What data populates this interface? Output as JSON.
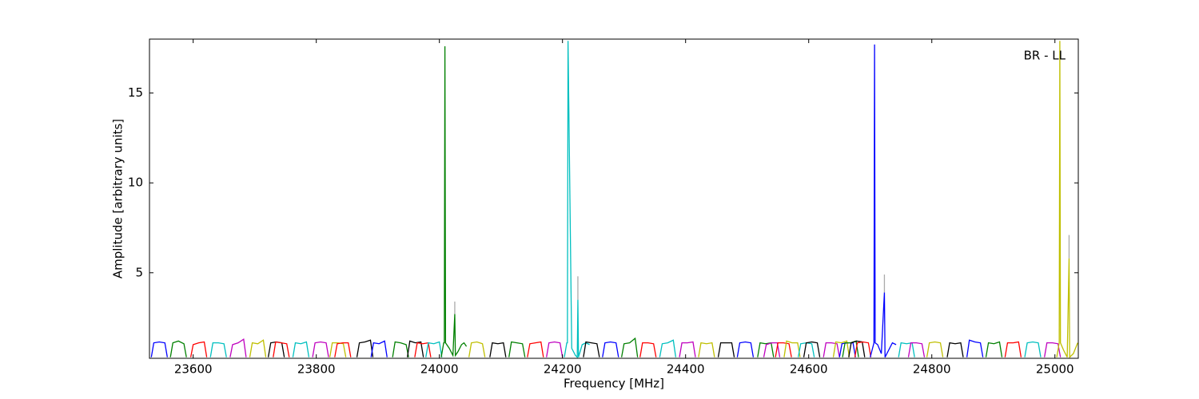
{
  "chart_data": {
    "type": "line",
    "xlabel": "Frequency [MHz]",
    "ylabel": "Amplitude [arbitrary units]",
    "annotation": "BR - LL",
    "xlim": [
      23529,
      25038
    ],
    "ylim": [
      0.24,
      18.0
    ],
    "xticks": [
      23600,
      23800,
      24000,
      24200,
      24400,
      24600,
      24800,
      25000
    ],
    "yticks": [
      5,
      10,
      15
    ],
    "series": [
      {
        "color": "#aaaaaa",
        "x": [
          24025,
          24025,
          24025,
          24225,
          24225,
          24225,
          24723,
          24723,
          24723,
          25023,
          25023,
          25023
        ],
        "values": [
          2.7,
          3.4,
          null,
          3.5,
          4.8,
          null,
          3.9,
          4.9,
          null,
          5.8,
          7.1,
          null
        ]
      },
      {
        "color": "#0000ff",
        "x": [
          23532,
          23536,
          23545,
          23554,
          23558
        ],
        "values": [
          0.3,
          1.1,
          1.15,
          1.1,
          0.3
        ]
      },
      {
        "color": "#008000",
        "x": [
          23563,
          23567,
          23576,
          23585,
          23589
        ],
        "values": [
          0.3,
          1.1,
          1.2,
          1.05,
          0.3
        ]
      },
      {
        "color": "#ff0000",
        "x": [
          23596,
          23600,
          23609,
          23618,
          23622
        ],
        "values": [
          0.3,
          1.0,
          1.1,
          1.15,
          0.3
        ]
      },
      {
        "color": "#00bfbf",
        "x": [
          23628,
          23632,
          23641,
          23650,
          23654
        ],
        "values": [
          0.3,
          1.1,
          1.1,
          1.05,
          0.3
        ]
      },
      {
        "color": "#bf00bf",
        "x": [
          23660,
          23664,
          23673,
          23682,
          23686
        ],
        "values": [
          0.3,
          1.0,
          1.1,
          1.3,
          0.3
        ]
      },
      {
        "color": "#bfbf00",
        "x": [
          23692,
          23696,
          23705,
          23714,
          23718
        ],
        "values": [
          0.3,
          1.1,
          1.05,
          1.25,
          0.3
        ]
      },
      {
        "color": "#000000",
        "x": [
          23722,
          23726,
          23735,
          23744,
          23748
        ],
        "values": [
          0.3,
          1.1,
          1.15,
          1.1,
          0.3
        ]
      },
      {
        "color": "#ff0000",
        "x": [
          23730,
          23734,
          23743,
          23752,
          23756
        ],
        "values": [
          0.3,
          1.15,
          1.1,
          1.05,
          0.3
        ]
      },
      {
        "color": "#00bfbf",
        "x": [
          23762,
          23766,
          23775,
          23784,
          23788
        ],
        "values": [
          0.3,
          1.1,
          1.05,
          1.15,
          0.3
        ]
      },
      {
        "color": "#bf00bf",
        "x": [
          23794,
          23798,
          23807,
          23816,
          23820
        ],
        "values": [
          0.3,
          1.1,
          1.15,
          1.1,
          0.3
        ]
      },
      {
        "color": "#bfbf00",
        "x": [
          23822,
          23826,
          23835,
          23844,
          23848
        ],
        "values": [
          0.3,
          1.1,
          1.1,
          1.05,
          0.3
        ]
      },
      {
        "color": "#ff0000",
        "x": [
          23830,
          23834,
          23843,
          23852,
          23856
        ],
        "values": [
          0.3,
          1.05,
          1.1,
          1.1,
          0.3
        ]
      },
      {
        "color": "#000000",
        "x": [
          23866,
          23870,
          23879,
          23888,
          23892
        ],
        "values": [
          0.3,
          1.1,
          1.15,
          1.25,
          0.3
        ]
      },
      {
        "color": "#0000ff",
        "x": [
          23889,
          23893,
          23902,
          23911,
          23915
        ],
        "values": [
          0.3,
          1.1,
          1.05,
          1.2,
          0.3
        ]
      },
      {
        "color": "#008000",
        "x": [
          23924,
          23928,
          23937,
          23946,
          23950
        ],
        "values": [
          0.3,
          1.15,
          1.1,
          1.0,
          0.3
        ]
      },
      {
        "color": "#000000",
        "x": [
          23948,
          23952,
          23961,
          23970,
          23974
        ],
        "values": [
          0.3,
          1.2,
          1.1,
          1.15,
          0.3
        ]
      },
      {
        "color": "#ff0000",
        "x": [
          23960,
          23964,
          23973,
          23982,
          23986
        ],
        "values": [
          0.3,
          1.1,
          1.05,
          1.1,
          0.3
        ]
      },
      {
        "color": "#00bfbf",
        "x": [
          23978,
          23982,
          23991,
          24000,
          24004
        ],
        "values": [
          0.3,
          1.1,
          1.05,
          1.15,
          0.3
        ]
      },
      {
        "color": "#008000",
        "x": [
          24003,
          24007,
          24008,
          24009,
          24010,
          24016,
          24022,
          24025,
          24026,
          24030,
          24036,
          24040,
          24044
        ],
        "values": [
          0.3,
          1.1,
          1.1,
          17.6,
          1.1,
          0.8,
          0.4,
          2.7,
          0.4,
          0.6,
          1.0,
          1.1,
          0.9
        ]
      },
      {
        "color": "#bfbf00",
        "x": [
          24048,
          24052,
          24061,
          24070,
          24074
        ],
        "values": [
          0.3,
          1.1,
          1.15,
          1.05,
          0.3
        ]
      },
      {
        "color": "#000000",
        "x": [
          24082,
          24086,
          24095,
          24104,
          24108
        ],
        "values": [
          0.3,
          1.1,
          1.05,
          1.1,
          0.3
        ]
      },
      {
        "color": "#008000",
        "x": [
          24113,
          24117,
          24126,
          24135,
          24139
        ],
        "values": [
          0.3,
          1.15,
          1.1,
          1.05,
          0.3
        ]
      },
      {
        "color": "#ff0000",
        "x": [
          24143,
          24147,
          24156,
          24165,
          24169
        ],
        "values": [
          0.3,
          1.05,
          1.1,
          1.15,
          0.3
        ]
      },
      {
        "color": "#bf00bf",
        "x": [
          24174,
          24178,
          24187,
          24196,
          24200
        ],
        "values": [
          0.3,
          1.1,
          1.15,
          1.1,
          0.3
        ]
      },
      {
        "color": "#00bfbf",
        "x": [
          24203,
          24207,
          24208,
          24209,
          24215,
          24221,
          24224,
          24225,
          24226,
          24232,
          24238,
          24244
        ],
        "values": [
          0.3,
          1.1,
          1.1,
          17.9,
          0.8,
          0.4,
          0.3,
          3.5,
          0.3,
          1.0,
          1.1,
          1.0
        ]
      },
      {
        "color": "#000000",
        "x": [
          24234,
          24238,
          24247,
          24256,
          24260
        ],
        "values": [
          0.3,
          1.15,
          1.1,
          1.05,
          0.3
        ]
      },
      {
        "color": "#0000ff",
        "x": [
          24265,
          24269,
          24278,
          24287,
          24291
        ],
        "values": [
          0.3,
          1.1,
          1.15,
          1.1,
          0.3
        ]
      },
      {
        "color": "#008000",
        "x": [
          24296,
          24300,
          24309,
          24318,
          24322
        ],
        "values": [
          0.3,
          1.05,
          1.1,
          1.35,
          0.3
        ]
      },
      {
        "color": "#ff0000",
        "x": [
          24326,
          24330,
          24339,
          24348,
          24352
        ],
        "values": [
          0.3,
          1.1,
          1.1,
          1.05,
          0.3
        ]
      },
      {
        "color": "#00bfbf",
        "x": [
          24358,
          24362,
          24371,
          24380,
          24384
        ],
        "values": [
          0.3,
          1.05,
          1.1,
          1.25,
          0.3
        ]
      },
      {
        "color": "#bf00bf",
        "x": [
          24390,
          24394,
          24403,
          24412,
          24416
        ],
        "values": [
          0.3,
          1.1,
          1.1,
          1.15,
          0.3
        ]
      },
      {
        "color": "#bfbf00",
        "x": [
          24421,
          24425,
          24434,
          24443,
          24447
        ],
        "values": [
          0.3,
          1.1,
          1.05,
          1.1,
          0.3
        ]
      },
      {
        "color": "#000000",
        "x": [
          24453,
          24457,
          24466,
          24475,
          24479
        ],
        "values": [
          0.3,
          1.1,
          1.1,
          1.1,
          0.3
        ]
      },
      {
        "color": "#0000ff",
        "x": [
          24484,
          24488,
          24497,
          24506,
          24510
        ],
        "values": [
          0.3,
          1.1,
          1.15,
          1.1,
          0.3
        ]
      },
      {
        "color": "#008000",
        "x": [
          24517,
          24521,
          24530,
          24539,
          24543
        ],
        "values": [
          0.3,
          1.1,
          1.05,
          1.1,
          0.3
        ]
      },
      {
        "color": "#bf00bf",
        "x": [
          24527,
          24531,
          24540,
          24549,
          24553
        ],
        "values": [
          0.3,
          1.0,
          1.1,
          1.1,
          0.3
        ]
      },
      {
        "color": "#ff0000",
        "x": [
          24546,
          24550,
          24559,
          24568,
          24572
        ],
        "values": [
          0.3,
          1.1,
          1.1,
          1.05,
          0.3
        ]
      },
      {
        "color": "#bfbf00",
        "x": [
          24560,
          24564,
          24573,
          24582,
          24586
        ],
        "values": [
          0.3,
          1.2,
          1.1,
          1.1,
          0.3
        ]
      },
      {
        "color": "#00bfbf",
        "x": [
          24583,
          24587,
          24596,
          24605,
          24609
        ],
        "values": [
          0.3,
          1.05,
          1.1,
          1.05,
          0.3
        ]
      },
      {
        "color": "#000000",
        "x": [
          24592,
          24596,
          24605,
          24614,
          24618
        ],
        "values": [
          0.3,
          1.1,
          1.15,
          1.1,
          0.3
        ]
      },
      {
        "color": "#bf00bf",
        "x": [
          24624,
          24628,
          24637,
          24646,
          24650
        ],
        "values": [
          0.3,
          1.1,
          1.1,
          1.05,
          0.3
        ]
      },
      {
        "color": "#bfbf00",
        "x": [
          24640,
          24644,
          24653,
          24662,
          24666
        ],
        "values": [
          0.3,
          1.15,
          1.1,
          1.2,
          0.3
        ]
      },
      {
        "color": "#0000ff",
        "x": [
          24650,
          24654,
          24663,
          24672,
          24676
        ],
        "values": [
          0.3,
          1.05,
          1.1,
          1.1,
          0.3
        ]
      },
      {
        "color": "#008000",
        "x": [
          24655,
          24659,
          24668,
          24677,
          24681
        ],
        "values": [
          0.3,
          1.1,
          1.1,
          1.2,
          0.3
        ]
      },
      {
        "color": "#000000",
        "x": [
          24665,
          24669,
          24678,
          24687,
          24691
        ],
        "values": [
          0.3,
          1.1,
          1.2,
          1.15,
          0.3
        ]
      },
      {
        "color": "#ff0000",
        "x": [
          24675,
          24679,
          24688,
          24697,
          24701
        ],
        "values": [
          0.3,
          1.1,
          1.15,
          1.1,
          0.3
        ]
      },
      {
        "color": "#0000ff",
        "x": [
          24700,
          24706,
          24707,
          24708,
          24712,
          24718,
          24723,
          24724,
          24730,
          24736,
          24742
        ],
        "values": [
          0.3,
          1.1,
          17.7,
          1.1,
          1.0,
          0.5,
          3.9,
          0.3,
          0.7,
          1.1,
          1.0
        ]
      },
      {
        "color": "#00bfbf",
        "x": [
          24746,
          24750,
          24759,
          24768,
          24772
        ],
        "values": [
          0.3,
          1.1,
          1.05,
          1.1,
          0.3
        ]
      },
      {
        "color": "#bf00bf",
        "x": [
          24762,
          24766,
          24775,
          24784,
          24788
        ],
        "values": [
          0.3,
          1.1,
          1.1,
          1.05,
          0.3
        ]
      },
      {
        "color": "#bfbf00",
        "x": [
          24792,
          24796,
          24805,
          24814,
          24818
        ],
        "values": [
          0.3,
          1.1,
          1.15,
          1.1,
          0.3
        ]
      },
      {
        "color": "#000000",
        "x": [
          24825,
          24829,
          24838,
          24847,
          24851
        ],
        "values": [
          0.3,
          1.1,
          1.05,
          1.1,
          0.3
        ]
      },
      {
        "color": "#0000ff",
        "x": [
          24857,
          24861,
          24870,
          24879,
          24883
        ],
        "values": [
          0.3,
          1.25,
          1.15,
          1.1,
          0.3
        ]
      },
      {
        "color": "#008000",
        "x": [
          24888,
          24892,
          24901,
          24910,
          24914
        ],
        "values": [
          0.3,
          1.1,
          1.05,
          1.15,
          0.3
        ]
      },
      {
        "color": "#ff0000",
        "x": [
          24919,
          24923,
          24932,
          24941,
          24945
        ],
        "values": [
          0.3,
          1.1,
          1.1,
          1.15,
          0.3
        ]
      },
      {
        "color": "#00bfbf",
        "x": [
          24951,
          24955,
          24964,
          24973,
          24977
        ],
        "values": [
          0.3,
          1.1,
          1.15,
          1.1,
          0.3
        ]
      },
      {
        "color": "#bf00bf",
        "x": [
          24983,
          24987,
          24996,
          25005,
          25009
        ],
        "values": [
          0.3,
          1.1,
          1.1,
          1.05,
          0.3
        ]
      },
      {
        "color": "#bfbf00",
        "x": [
          25003,
          25007,
          25008,
          25009,
          25014,
          25020,
          25023,
          25024,
          25030,
          25037
        ],
        "values": [
          0.3,
          1.1,
          17.9,
          1.1,
          0.7,
          0.3,
          5.8,
          0.3,
          0.5,
          1.1
        ]
      }
    ]
  }
}
